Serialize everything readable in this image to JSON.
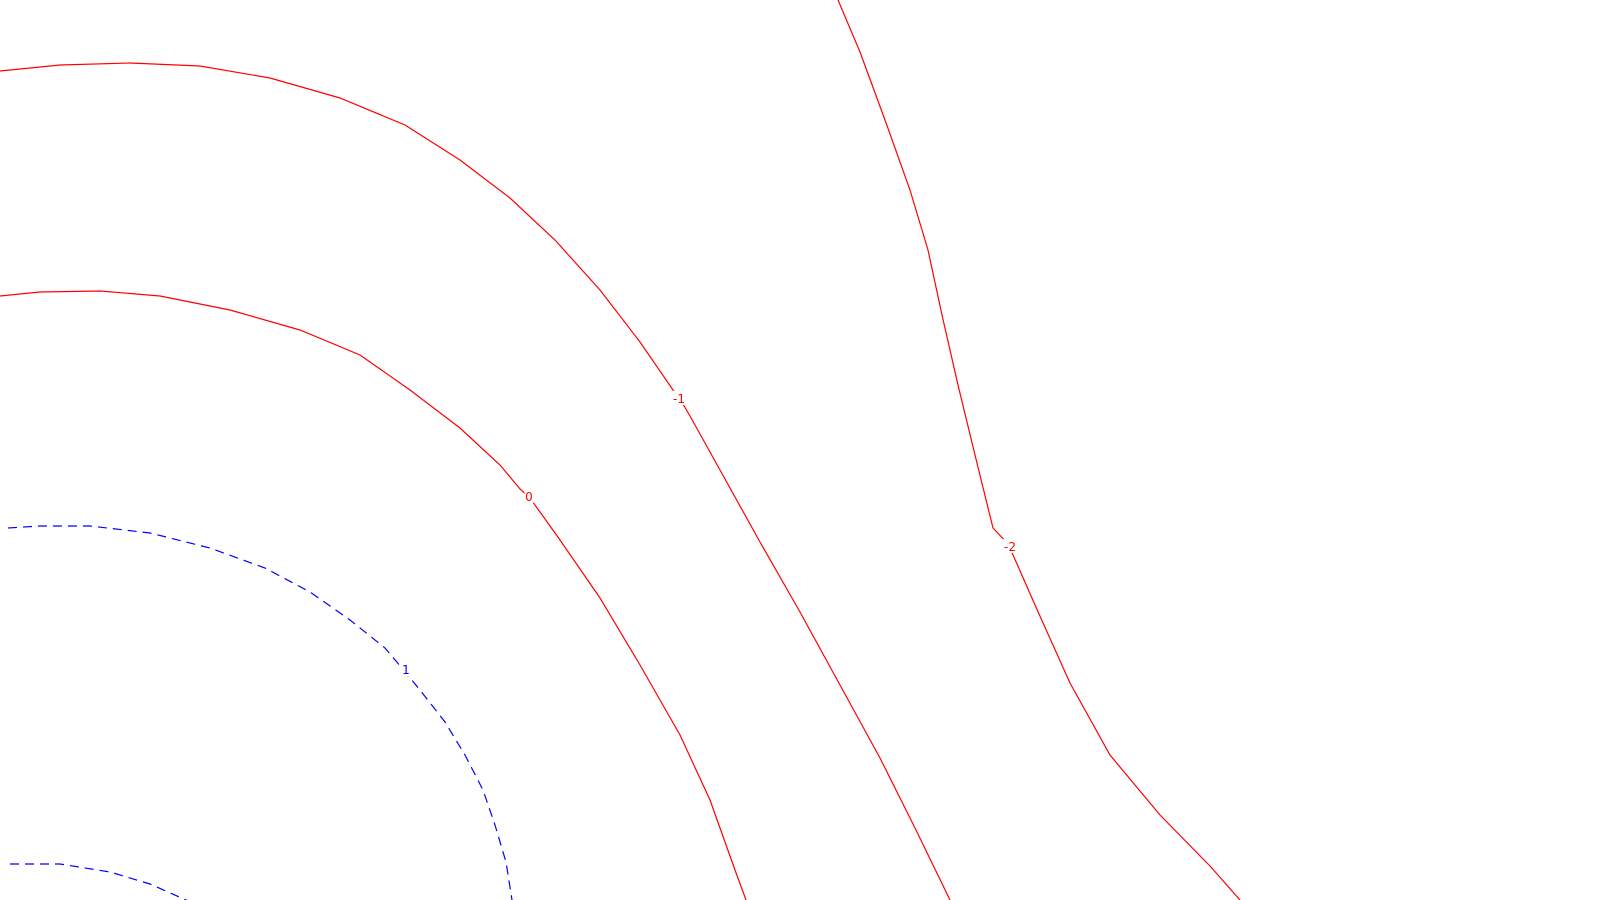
{
  "chart_data": {
    "type": "contour",
    "title": "",
    "xlabel": "",
    "ylabel": "",
    "grid": false,
    "legend": "none",
    "levels": [
      {
        "value": 1,
        "label": "1",
        "color": "#0000ff",
        "dashed": true,
        "lines": [
          {
            "name": "contour-line-1-outer"
          },
          {
            "name": "contour-line-1-inner"
          }
        ]
      },
      {
        "value": 0,
        "label": "0",
        "color": "#ff0000",
        "dashed": false,
        "lines": [
          {
            "name": "contour-line-0"
          }
        ]
      },
      {
        "value": -1,
        "label": "-1",
        "color": "#ff0000",
        "dashed": false,
        "lines": [
          {
            "name": "contour-line-minus1"
          }
        ]
      },
      {
        "value": -2,
        "label": "-2",
        "color": "#ff0000",
        "dashed": false,
        "lines": [
          {
            "name": "contour-line-minus2"
          }
        ]
      }
    ]
  }
}
